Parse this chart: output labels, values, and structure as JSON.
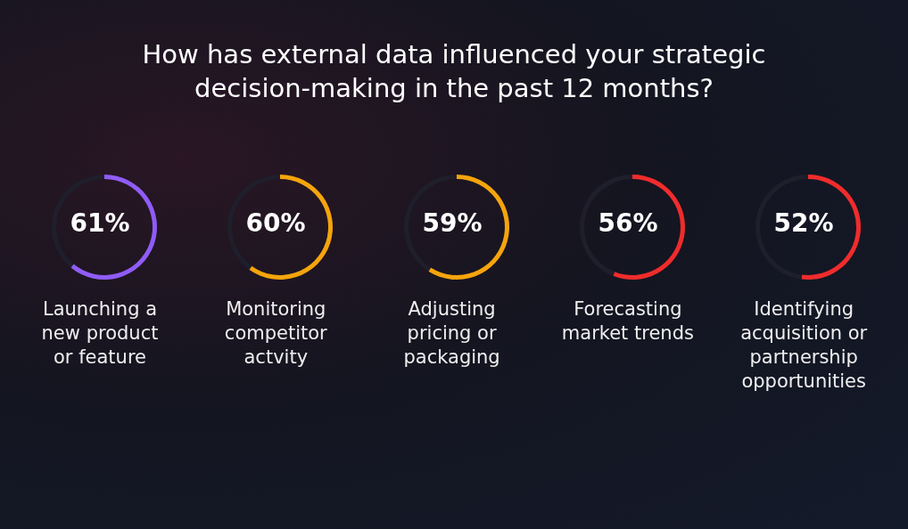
{
  "chart_data": [
    {
      "type": "donut",
      "categories": [
        "Launching a new product or feature",
        null
      ],
      "values": [
        61,
        39
      ],
      "colors": [
        "#8f5cf7",
        "#1f1f2c"
      ],
      "annotations": [
        "61%"
      ]
    },
    {
      "type": "donut",
      "categories": [
        "Monitoring competitor actvity",
        null
      ],
      "values": [
        60,
        40
      ],
      "colors": [
        "#f5a40c",
        "#1f1f2c"
      ],
      "annotations": [
        "60%"
      ]
    },
    {
      "type": "donut",
      "title": "How has external data influenced your strategic decision-making in the past 12 months?",
      "categories": [
        "Adjusting pricing or packaging",
        null
      ],
      "values": [
        59,
        41
      ],
      "colors": [
        "#f5a40c",
        "#1f1f2c"
      ],
      "annotations": [
        "59%"
      ]
    },
    {
      "type": "donut",
      "categories": [
        "Forecasting market trends",
        null
      ],
      "values": [
        56,
        44
      ],
      "colors": [
        "#f02c2c",
        "#1f1f2c"
      ],
      "annotations": [
        "56%"
      ]
    },
    {
      "type": "donut",
      "categories": [
        "Identifying acquisition or partnership opportunities",
        null
      ],
      "values": [
        52,
        48
      ],
      "colors": [
        "#f02c2c",
        "#1f1f2c"
      ],
      "annotations": [
        "52%"
      ]
    }
  ]
}
